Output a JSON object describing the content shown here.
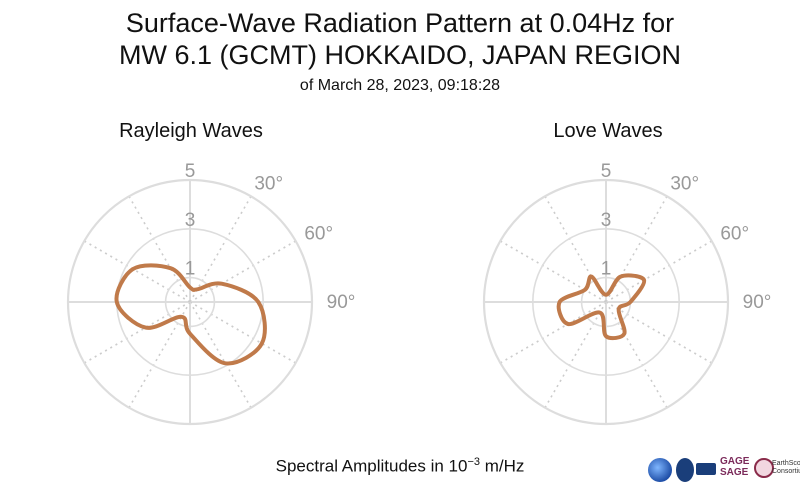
{
  "title_line1": "Surface-Wave Radiation Pattern at 0.04Hz for",
  "title_line2": "MW 6.1 (GCMT) HOKKAIDO, JAPAN REGION",
  "subtitle": "of March 28, 2023, 09:18:28",
  "xlabel_text": "Spectral Amplitudes in ",
  "xlabel_base": "10",
  "xlabel_exp": "−3",
  "xlabel_unit": " m/Hz",
  "colors": {
    "curve": "#c07a4a",
    "grid": "#dddddd",
    "spoke": "#cccccc",
    "label": "#999999"
  },
  "logos": {
    "gage_line1": "GAGE",
    "gage_line2": "SAGE",
    "ec_line1": "EarthScope",
    "ec_line2": "Consortium"
  },
  "chart_data": [
    {
      "type": "polar-line",
      "title": "Rayleigh Waves",
      "r_ticks": [
        1,
        3,
        5
      ],
      "r_max": 5,
      "angle_labels": [
        {
          "deg": 30,
          "text": "30°"
        },
        {
          "deg": 60,
          "text": "60°"
        },
        {
          "deg": 90,
          "text": "90°"
        }
      ],
      "series": [
        {
          "azimuth_deg": [
            0,
            30,
            60,
            90,
            120,
            150,
            180,
            210,
            240,
            270,
            300,
            330,
            360
          ],
          "amplitude": [
            0.6,
            0.6,
            1.5,
            2.8,
            3.4,
            2.9,
            1.3,
            0.7,
            2.1,
            3.0,
            2.7,
            1.6,
            0.6
          ]
        }
      ]
    },
    {
      "type": "polar-line",
      "title": "Love Waves",
      "r_ticks": [
        1,
        3,
        5
      ],
      "r_max": 5,
      "angle_labels": [
        {
          "deg": 30,
          "text": "30°"
        },
        {
          "deg": 60,
          "text": "60°"
        },
        {
          "deg": 90,
          "text": "90°"
        }
      ],
      "series": [
        {
          "azimuth_deg": [
            0,
            30,
            60,
            90,
            120,
            150,
            180,
            210,
            240,
            270,
            300,
            330,
            360
          ],
          "amplitude": [
            0.3,
            1.2,
            1.8,
            1.0,
            0.6,
            1.5,
            1.4,
            0.5,
            1.8,
            1.9,
            1.0,
            1.2,
            0.3
          ]
        }
      ]
    }
  ]
}
